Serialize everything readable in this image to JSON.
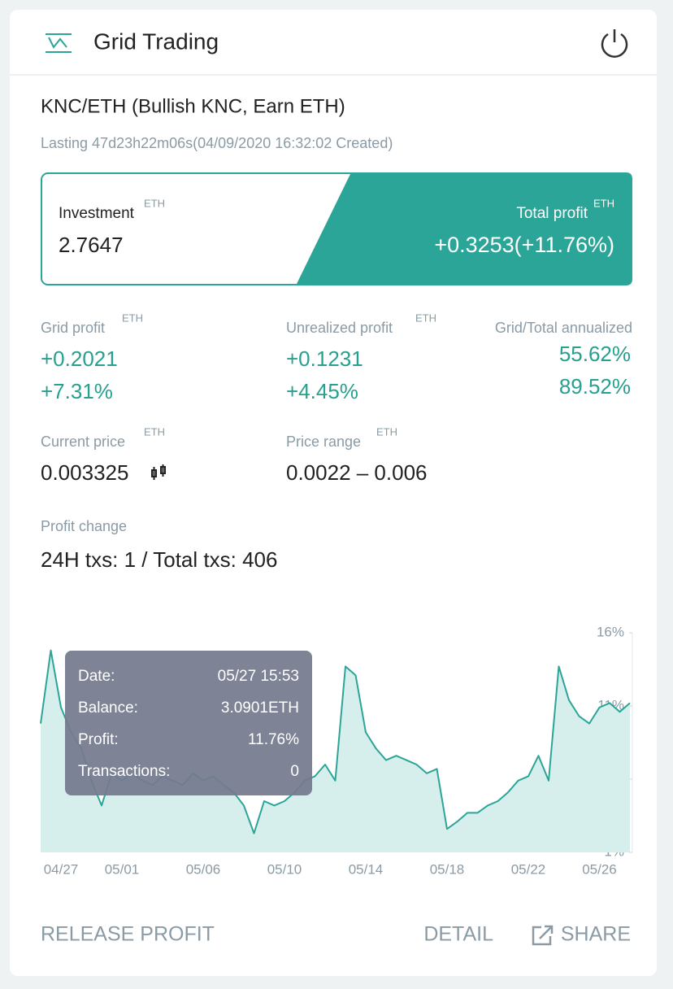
{
  "header": {
    "title": "Grid Trading"
  },
  "pair": "KNC/ETH (Bullish KNC, Earn ETH)",
  "lasting": "Lasting 47d23h22m06s(04/09/2020 16:32:02 Created)",
  "investment": {
    "label": "Investment",
    "unit": "ETH",
    "value": "2.7647"
  },
  "total_profit": {
    "label": "Total profit",
    "unit": "ETH",
    "value": "+0.3253(+11.76%)"
  },
  "grid_profit": {
    "label": "Grid profit",
    "unit": "ETH",
    "amount": "+0.2021",
    "percent": "+7.31%"
  },
  "unrealized_profit": {
    "label": "Unrealized profit",
    "unit": "ETH",
    "amount": "+0.1231",
    "percent": "+4.45%"
  },
  "annualized": {
    "label": "Grid/Total annualized",
    "grid": "55.62%",
    "total": "89.52%"
  },
  "current_price": {
    "label": "Current price",
    "unit": "ETH",
    "value": "0.003325"
  },
  "price_range": {
    "label": "Price range",
    "unit": "ETH",
    "value": "0.0022 – 0.006"
  },
  "profit_change": {
    "label": "Profit change",
    "txs": "24H txs: 1 / Total txs: 406"
  },
  "chart_data": {
    "type": "area",
    "color": "#2ba597",
    "fill": "#d6efec",
    "categories": [
      null,
      null,
      "04/27",
      null,
      null,
      null,
      null,
      null,
      "05/01",
      null,
      null,
      null,
      null,
      null,
      null,
      null,
      "05/06",
      null,
      null,
      null,
      null,
      null,
      null,
      null,
      "05/10",
      null,
      null,
      null,
      null,
      null,
      null,
      null,
      "05/14",
      null,
      null,
      null,
      null,
      null,
      null,
      null,
      "05/18",
      null,
      null,
      null,
      null,
      null,
      null,
      null,
      "05/22",
      null,
      null,
      null,
      null,
      null,
      null,
      "05/26",
      null,
      null,
      null
    ],
    "values": [
      9.8,
      14.8,
      10.9,
      9.2,
      8.1,
      5.9,
      4.2,
      6.4,
      5.9,
      6.4,
      5.9,
      5.6,
      6.2,
      5.9,
      5.6,
      6.4,
      5.9,
      6.2,
      5.6,
      5.1,
      4.2,
      2.3,
      4.5,
      4.2,
      4.5,
      5.1,
      5.9,
      6.2,
      7.0,
      5.9,
      13.7,
      13.1,
      9.2,
      8.1,
      7.3,
      7.6,
      7.3,
      7.0,
      6.4,
      6.7,
      2.6,
      3.1,
      3.7,
      3.7,
      4.2,
      4.5,
      5.1,
      5.9,
      6.2,
      7.6,
      5.9,
      13.7,
      11.4,
      10.3,
      9.8,
      10.9,
      11.2,
      10.6,
      11.2
    ],
    "ylim": [
      1,
      16
    ],
    "yticks": [
      {
        "value": 1,
        "label": "1%"
      },
      {
        "value": 6,
        "label": "6%"
      },
      {
        "value": 11,
        "label": "11%"
      },
      {
        "value": 16,
        "label": "16%"
      }
    ],
    "tooltip": [
      {
        "label": "Date:",
        "value": "05/27 15:53"
      },
      {
        "label": "Balance:",
        "value": "3.0901ETH"
      },
      {
        "label": "Profit:",
        "value": "11.76%"
      },
      {
        "label": "Transactions:",
        "value": "0"
      }
    ]
  },
  "actions": {
    "release": "RELEASE PROFIT",
    "detail": "DETAIL",
    "share": "SHARE"
  }
}
